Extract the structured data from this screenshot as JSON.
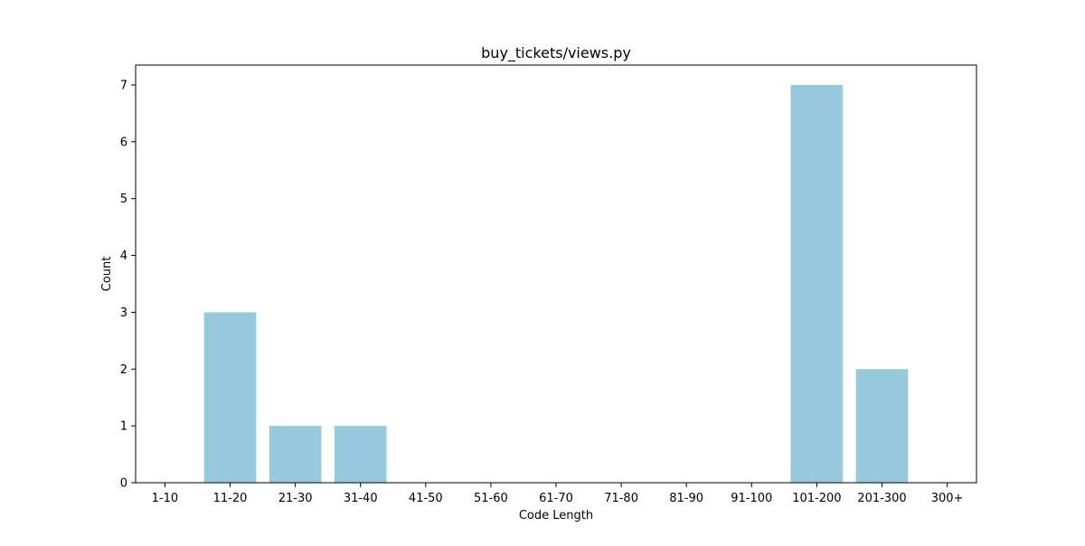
{
  "chart_data": {
    "type": "bar",
    "title": "buy_tickets/views.py",
    "xlabel": "Code Length",
    "ylabel": "Count",
    "categories": [
      "1-10",
      "11-20",
      "21-30",
      "31-40",
      "41-50",
      "51-60",
      "61-70",
      "71-80",
      "81-90",
      "91-100",
      "101-200",
      "201-300",
      "300+"
    ],
    "values": [
      0,
      3,
      1,
      1,
      0,
      0,
      0,
      0,
      0,
      0,
      7,
      2,
      0
    ],
    "ylim": [
      0,
      7.35
    ],
    "yticks": [
      0,
      1,
      2,
      3,
      4,
      5,
      6,
      7
    ],
    "grid": false,
    "legend": "none",
    "bar_color": "#96c9dc"
  }
}
